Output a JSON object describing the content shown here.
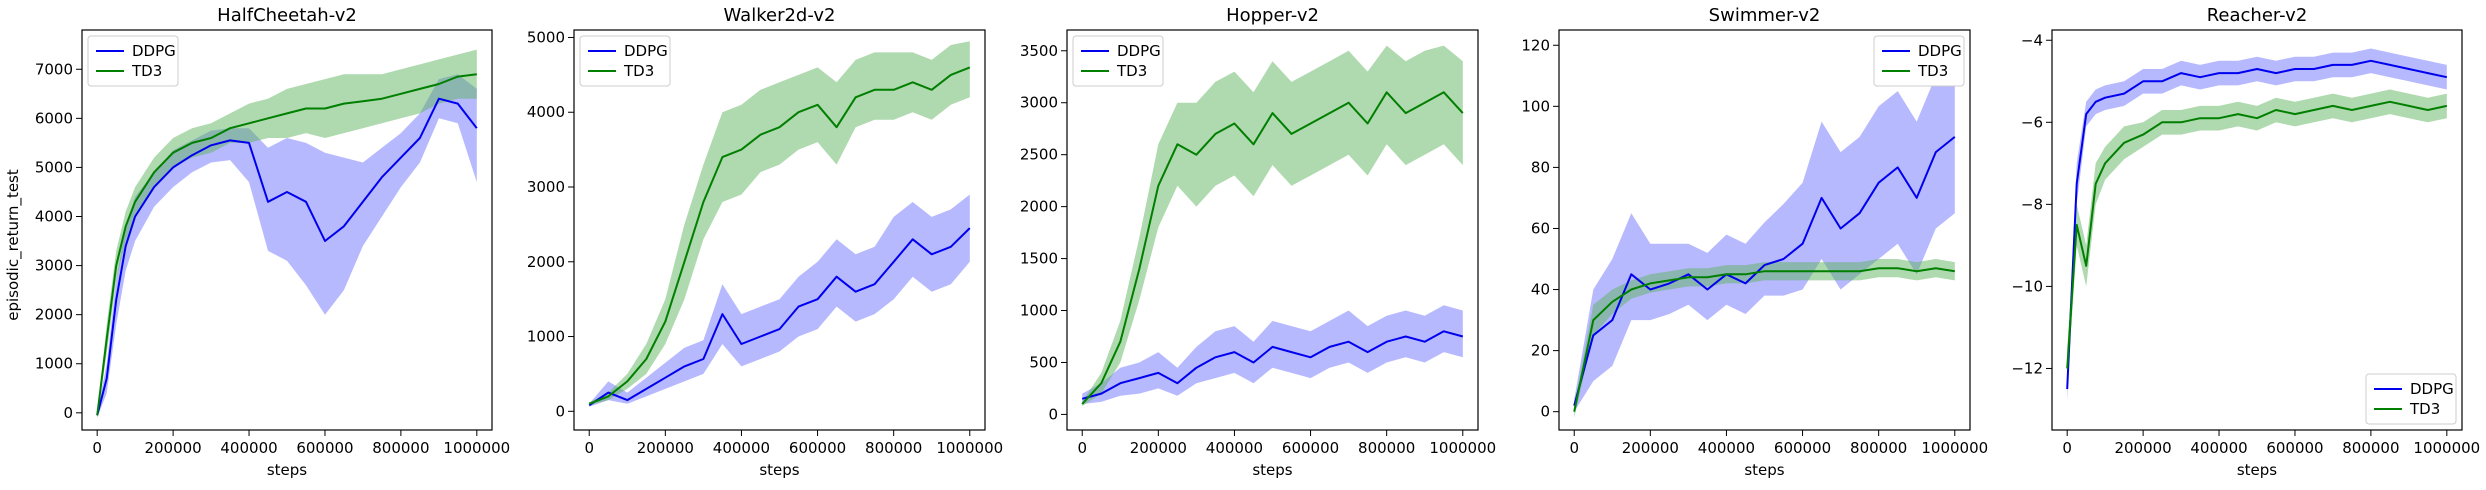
{
  "figure": {
    "shared_xlabel": "steps",
    "ylabel": "episodic_return_test",
    "series_names": [
      "DDPG",
      "TD3"
    ],
    "colors": {
      "DDPG_line": "#0000ee",
      "DDPG_band": "#6f74ff",
      "TD3_line": "#007f00",
      "TD3_band": "#5fb45f"
    }
  },
  "chart_data": [
    {
      "type": "line",
      "title": "HalfCheetah-v2",
      "xlabel": "steps",
      "ylabel": "episodic_return_test",
      "xlim": [
        -40000,
        1040000
      ],
      "ylim": [
        -350,
        7800
      ],
      "xticks": [
        0,
        200000,
        400000,
        600000,
        800000,
        1000000
      ],
      "yticks": [
        0,
        1000,
        2000,
        3000,
        4000,
        5000,
        6000,
        7000
      ],
      "legend_position": "upper-left",
      "x": [
        0,
        25000,
        50000,
        75000,
        100000,
        150000,
        200000,
        250000,
        300000,
        350000,
        400000,
        450000,
        500000,
        550000,
        600000,
        650000,
        700000,
        750000,
        800000,
        850000,
        900000,
        950000,
        1000000
      ],
      "series": [
        {
          "name": "DDPG",
          "values": [
            -50,
            700,
            2300,
            3400,
            4000,
            4600,
            5000,
            5250,
            5450,
            5550,
            5500,
            4300,
            4500,
            4300,
            3500,
            3800,
            4300,
            4800,
            5200,
            5600,
            6400,
            6300,
            5800
          ],
          "lower": [
            -100,
            400,
            1800,
            2900,
            3500,
            4200,
            4600,
            4900,
            5100,
            5150,
            4700,
            3300,
            3100,
            2600,
            2000,
            2500,
            3400,
            4000,
            4600,
            5100,
            6000,
            5900,
            4700
          ],
          "upper": [
            0,
            1000,
            2700,
            3800,
            4400,
            4900,
            5350,
            5550,
            5750,
            5800,
            5800,
            5400,
            5600,
            5500,
            5300,
            5200,
            5100,
            5400,
            5700,
            6100,
            6800,
            6900,
            6600
          ]
        },
        {
          "name": "TD3",
          "values": [
            -50,
            1500,
            3000,
            3800,
            4300,
            4900,
            5300,
            5500,
            5600,
            5800,
            5900,
            6000,
            6100,
            6200,
            6200,
            6300,
            6350,
            6400,
            6500,
            6600,
            6700,
            6850,
            6900
          ],
          "lower": [
            -100,
            1200,
            2700,
            3500,
            4000,
            4600,
            5000,
            5200,
            5300,
            5500,
            5500,
            5600,
            5600,
            5700,
            5600,
            5700,
            5800,
            5900,
            6000,
            6100,
            6300,
            6400,
            6400
          ],
          "upper": [
            0,
            1800,
            3300,
            4100,
            4600,
            5200,
            5600,
            5800,
            5900,
            6100,
            6300,
            6400,
            6600,
            6700,
            6800,
            6900,
            6900,
            6900,
            7000,
            7100,
            7200,
            7300,
            7400
          ]
        }
      ]
    },
    {
      "type": "line",
      "title": "Walker2d-v2",
      "xlabel": "steps",
      "ylabel": "",
      "xlim": [
        -40000,
        1040000
      ],
      "ylim": [
        -250,
        5100
      ],
      "xticks": [
        0,
        200000,
        400000,
        600000,
        800000,
        1000000
      ],
      "yticks": [
        0,
        1000,
        2000,
        3000,
        4000,
        5000
      ],
      "legend_position": "upper-left",
      "x": [
        0,
        50000,
        100000,
        150000,
        200000,
        250000,
        300000,
        350000,
        400000,
        450000,
        500000,
        550000,
        600000,
        650000,
        700000,
        750000,
        800000,
        850000,
        900000,
        950000,
        1000000
      ],
      "series": [
        {
          "name": "DDPG",
          "values": [
            80,
            250,
            150,
            300,
            450,
            600,
            700,
            1300,
            900,
            1000,
            1100,
            1400,
            1500,
            1800,
            1600,
            1700,
            2000,
            2300,
            2100,
            2200,
            2450
          ],
          "lower": [
            60,
            150,
            100,
            200,
            300,
            400,
            500,
            900,
            600,
            700,
            800,
            1000,
            1100,
            1400,
            1200,
            1300,
            1500,
            1800,
            1600,
            1700,
            2000
          ],
          "upper": [
            100,
            400,
            250,
            450,
            650,
            850,
            950,
            1700,
            1300,
            1400,
            1500,
            1800,
            2000,
            2300,
            2100,
            2200,
            2600,
            2800,
            2600,
            2700,
            2900
          ]
        },
        {
          "name": "TD3",
          "values": [
            100,
            200,
            400,
            700,
            1200,
            2000,
            2800,
            3400,
            3500,
            3700,
            3800,
            4000,
            4100,
            3800,
            4200,
            4300,
            4300,
            4400,
            4300,
            4500,
            4600
          ],
          "lower": [
            80,
            150,
            300,
            500,
            900,
            1500,
            2300,
            2800,
            2900,
            3200,
            3300,
            3500,
            3600,
            3300,
            3800,
            3900,
            3900,
            4000,
            3900,
            4100,
            4200
          ],
          "upper": [
            120,
            250,
            500,
            900,
            1500,
            2500,
            3300,
            4000,
            4100,
            4300,
            4400,
            4500,
            4600,
            4400,
            4700,
            4800,
            4800,
            4800,
            4700,
            4900,
            4950
          ]
        }
      ]
    },
    {
      "type": "line",
      "title": "Hopper-v2",
      "xlabel": "steps",
      "ylabel": "",
      "xlim": [
        -40000,
        1040000
      ],
      "ylim": [
        -150,
        3700
      ],
      "xticks": [
        0,
        200000,
        400000,
        600000,
        800000,
        1000000
      ],
      "yticks": [
        0,
        500,
        1000,
        1500,
        2000,
        2500,
        3000,
        3500
      ],
      "legend_position": "upper-left",
      "x": [
        0,
        50000,
        100000,
        150000,
        200000,
        250000,
        300000,
        350000,
        400000,
        450000,
        500000,
        550000,
        600000,
        650000,
        700000,
        750000,
        800000,
        850000,
        900000,
        950000,
        1000000
      ],
      "series": [
        {
          "name": "DDPG",
          "values": [
            150,
            200,
            300,
            350,
            400,
            300,
            450,
            550,
            600,
            500,
            650,
            600,
            550,
            650,
            700,
            600,
            700,
            750,
            700,
            800,
            750
          ],
          "lower": [
            100,
            120,
            180,
            200,
            250,
            180,
            300,
            350,
            400,
            300,
            450,
            400,
            350,
            450,
            500,
            400,
            500,
            550,
            500,
            600,
            550
          ],
          "upper": [
            200,
            300,
            450,
            500,
            600,
            450,
            650,
            800,
            850,
            700,
            900,
            850,
            800,
            900,
            1000,
            850,
            950,
            1000,
            950,
            1050,
            1000
          ]
        },
        {
          "name": "TD3",
          "values": [
            100,
            300,
            700,
            1400,
            2200,
            2600,
            2500,
            2700,
            2800,
            2600,
            2900,
            2700,
            2800,
            2900,
            3000,
            2800,
            3100,
            2900,
            3000,
            3100,
            2900
          ],
          "lower": [
            80,
            200,
            500,
            1100,
            1800,
            2200,
            2000,
            2200,
            2300,
            2100,
            2400,
            2200,
            2300,
            2400,
            2500,
            2300,
            2600,
            2400,
            2500,
            2600,
            2400
          ],
          "upper": [
            120,
            400,
            900,
            1700,
            2600,
            3000,
            3000,
            3200,
            3300,
            3100,
            3400,
            3200,
            3300,
            3400,
            3500,
            3300,
            3550,
            3400,
            3500,
            3550,
            3400
          ]
        }
      ]
    },
    {
      "type": "line",
      "title": "Swimmer-v2",
      "xlabel": "steps",
      "ylabel": "",
      "xlim": [
        -40000,
        1040000
      ],
      "ylim": [
        -6,
        125
      ],
      "xticks": [
        0,
        200000,
        400000,
        600000,
        800000,
        1000000
      ],
      "yticks": [
        0,
        20,
        40,
        60,
        80,
        100,
        120
      ],
      "legend_position": "upper-right",
      "x": [
        0,
        50000,
        100000,
        150000,
        200000,
        250000,
        300000,
        350000,
        400000,
        450000,
        500000,
        550000,
        600000,
        650000,
        700000,
        750000,
        800000,
        850000,
        900000,
        950000,
        1000000
      ],
      "series": [
        {
          "name": "DDPG",
          "values": [
            2,
            25,
            30,
            45,
            40,
            42,
            45,
            40,
            45,
            42,
            48,
            50,
            55,
            70,
            60,
            65,
            75,
            80,
            70,
            85,
            90
          ],
          "lower": [
            0,
            10,
            15,
            30,
            30,
            32,
            35,
            30,
            35,
            32,
            38,
            38,
            40,
            50,
            40,
            45,
            50,
            55,
            45,
            60,
            65
          ],
          "upper": [
            4,
            40,
            50,
            65,
            55,
            55,
            55,
            52,
            58,
            55,
            62,
            68,
            75,
            95,
            85,
            90,
            100,
            105,
            95,
            110,
            110
          ]
        },
        {
          "name": "TD3",
          "values": [
            0,
            30,
            36,
            40,
            42,
            43,
            44,
            44,
            45,
            45,
            46,
            46,
            46,
            46,
            46,
            46,
            47,
            47,
            46,
            47,
            46
          ],
          "lower": [
            -2,
            25,
            32,
            37,
            39,
            40,
            41,
            41,
            42,
            42,
            43,
            43,
            43,
            43,
            43,
            43,
            44,
            44,
            43,
            44,
            43
          ],
          "upper": [
            2,
            35,
            40,
            43,
            45,
            46,
            47,
            47,
            48,
            48,
            49,
            49,
            49,
            49,
            49,
            49,
            50,
            50,
            49,
            50,
            49
          ]
        }
      ]
    },
    {
      "type": "line",
      "title": "Reacher-v2",
      "xlabel": "steps",
      "ylabel": "",
      "xlim": [
        -40000,
        1040000
      ],
      "ylim": [
        -13.5,
        -3.75
      ],
      "xticks": [
        0,
        200000,
        400000,
        600000,
        800000,
        1000000
      ],
      "yticks": [
        -12,
        -10,
        -8,
        -6,
        -4
      ],
      "legend_position": "lower-right",
      "x": [
        0,
        25000,
        50000,
        75000,
        100000,
        150000,
        200000,
        250000,
        300000,
        350000,
        400000,
        450000,
        500000,
        550000,
        600000,
        650000,
        700000,
        750000,
        800000,
        850000,
        900000,
        950000,
        1000000
      ],
      "series": [
        {
          "name": "DDPG",
          "values": [
            -12.5,
            -7.5,
            -5.8,
            -5.5,
            -5.4,
            -5.3,
            -5.0,
            -5.0,
            -4.8,
            -4.9,
            -4.8,
            -4.8,
            -4.7,
            -4.8,
            -4.7,
            -4.7,
            -4.6,
            -4.6,
            -4.5,
            -4.6,
            -4.7,
            -4.8,
            -4.9
          ],
          "lower": [
            -12.8,
            -8.0,
            -6.1,
            -5.8,
            -5.7,
            -5.6,
            -5.3,
            -5.3,
            -5.1,
            -5.2,
            -5.1,
            -5.1,
            -5.0,
            -5.1,
            -5.0,
            -5.0,
            -4.9,
            -4.9,
            -4.8,
            -4.9,
            -5.0,
            -5.1,
            -5.2
          ],
          "upper": [
            -12.2,
            -7.0,
            -5.5,
            -5.2,
            -5.1,
            -5.0,
            -4.7,
            -4.7,
            -4.5,
            -4.6,
            -4.5,
            -4.5,
            -4.4,
            -4.5,
            -4.4,
            -4.4,
            -4.3,
            -4.3,
            -4.2,
            -4.3,
            -4.4,
            -4.5,
            -4.6
          ]
        },
        {
          "name": "TD3",
          "values": [
            -12.0,
            -8.5,
            -9.5,
            -7.5,
            -7.0,
            -6.5,
            -6.3,
            -6.0,
            -6.0,
            -5.9,
            -5.9,
            -5.8,
            -5.9,
            -5.7,
            -5.8,
            -5.7,
            -5.6,
            -5.7,
            -5.6,
            -5.5,
            -5.6,
            -5.7,
            -5.6
          ],
          "lower": [
            -12.5,
            -9.0,
            -10.0,
            -8.0,
            -7.4,
            -6.9,
            -6.6,
            -6.3,
            -6.3,
            -6.2,
            -6.2,
            -6.1,
            -6.2,
            -6.0,
            -6.1,
            -6.0,
            -5.9,
            -6.0,
            -5.9,
            -5.8,
            -5.9,
            -6.0,
            -5.9
          ],
          "upper": [
            -11.5,
            -8.0,
            -9.0,
            -7.0,
            -6.6,
            -6.1,
            -6.0,
            -5.7,
            -5.7,
            -5.6,
            -5.6,
            -5.5,
            -5.6,
            -5.4,
            -5.5,
            -5.4,
            -5.3,
            -5.4,
            -5.3,
            -5.2,
            -5.3,
            -5.4,
            -5.3
          ]
        }
      ]
    }
  ]
}
